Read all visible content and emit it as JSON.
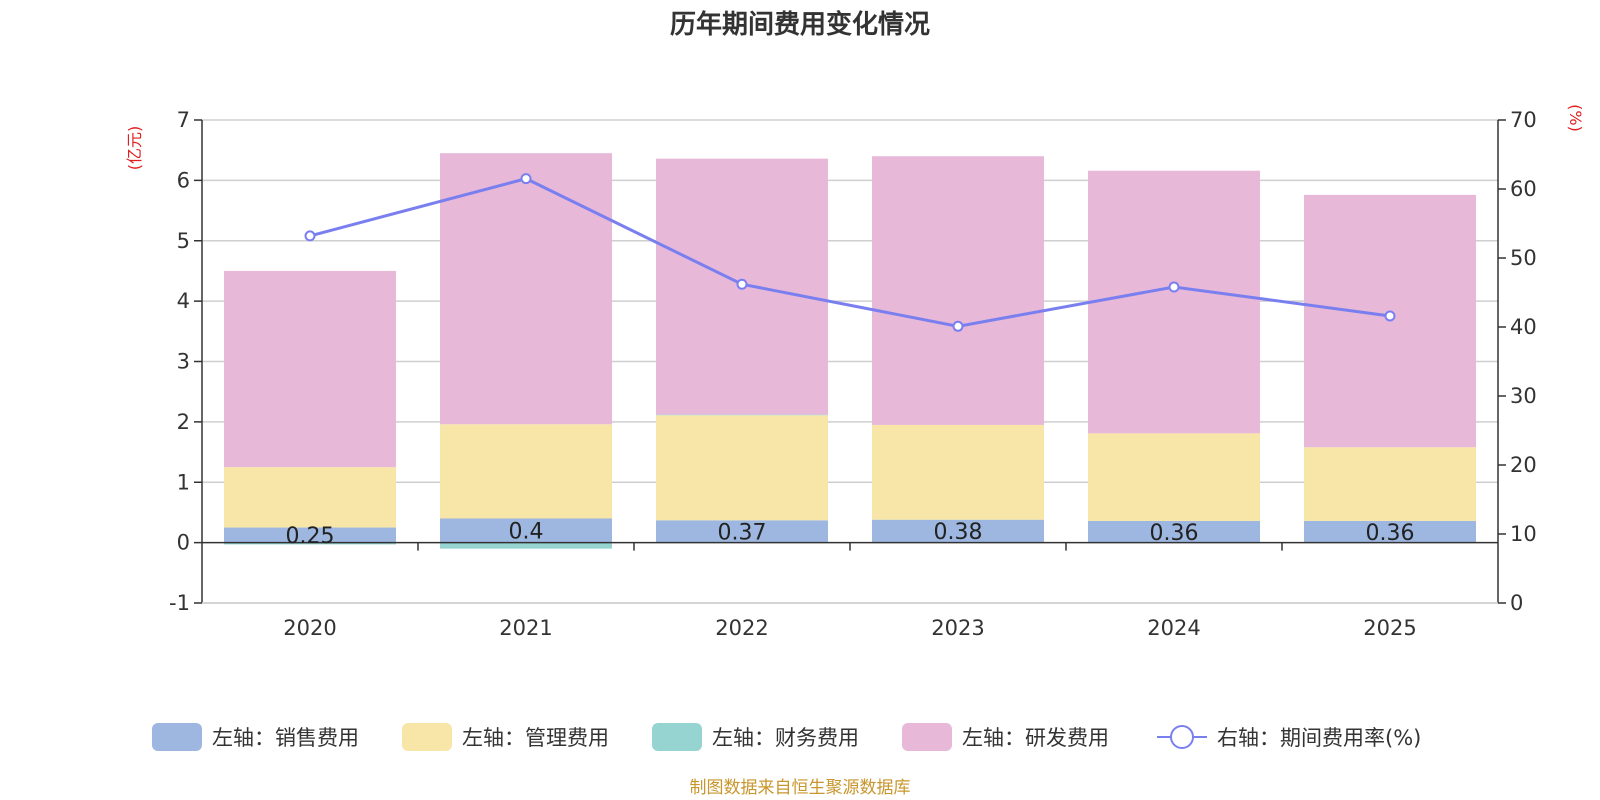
{
  "chart_data": {
    "type": "bar",
    "stacked": true,
    "title": "历年期间费用变化情况",
    "left_axis_unit": "(亿元)",
    "right_axis_unit": "(%)",
    "categories": [
      "2020",
      "2021",
      "2022",
      "2023",
      "2024",
      "2025"
    ],
    "left_axis": {
      "min": -1,
      "max": 7,
      "ticks": [
        "-1",
        "0",
        "1",
        "2",
        "3",
        "4",
        "5",
        "6",
        "7"
      ]
    },
    "right_axis": {
      "min": 0,
      "max": 70,
      "ticks": [
        "0",
        "10",
        "20",
        "30",
        "40",
        "50",
        "60",
        "70"
      ]
    },
    "series": [
      {
        "name": "左轴：销售费用",
        "color": "#9db7e0",
        "values": [
          0.25,
          0.4,
          0.37,
          0.38,
          0.36,
          0.36
        ],
        "labels": [
          "0.25",
          "0.4",
          "0.37",
          "0.38",
          "0.36",
          "0.36"
        ]
      },
      {
        "name": "左轴：管理费用",
        "color": "#f8e6a8",
        "values": [
          1.0,
          1.56,
          1.74,
          1.57,
          1.45,
          1.22
        ]
      },
      {
        "name": "左轴：财务费用",
        "color": "#96d4d2",
        "values": [
          -0.03,
          -0.1,
          0.01,
          0.0,
          0.0,
          0.0
        ]
      },
      {
        "name": "左轴：研发费用",
        "color": "#e8b8d8",
        "values": [
          3.25,
          4.49,
          4.24,
          4.45,
          4.35,
          4.18
        ]
      }
    ],
    "line_series": {
      "name": "右轴：期间费用率(%)",
      "color": "#7a7ff0",
      "values": [
        53.2,
        61.5,
        46.2,
        40.1,
        45.8,
        41.6
      ]
    },
    "legend_position": "bottom",
    "grid": true
  },
  "source": "制图数据来自恒生聚源数据库"
}
